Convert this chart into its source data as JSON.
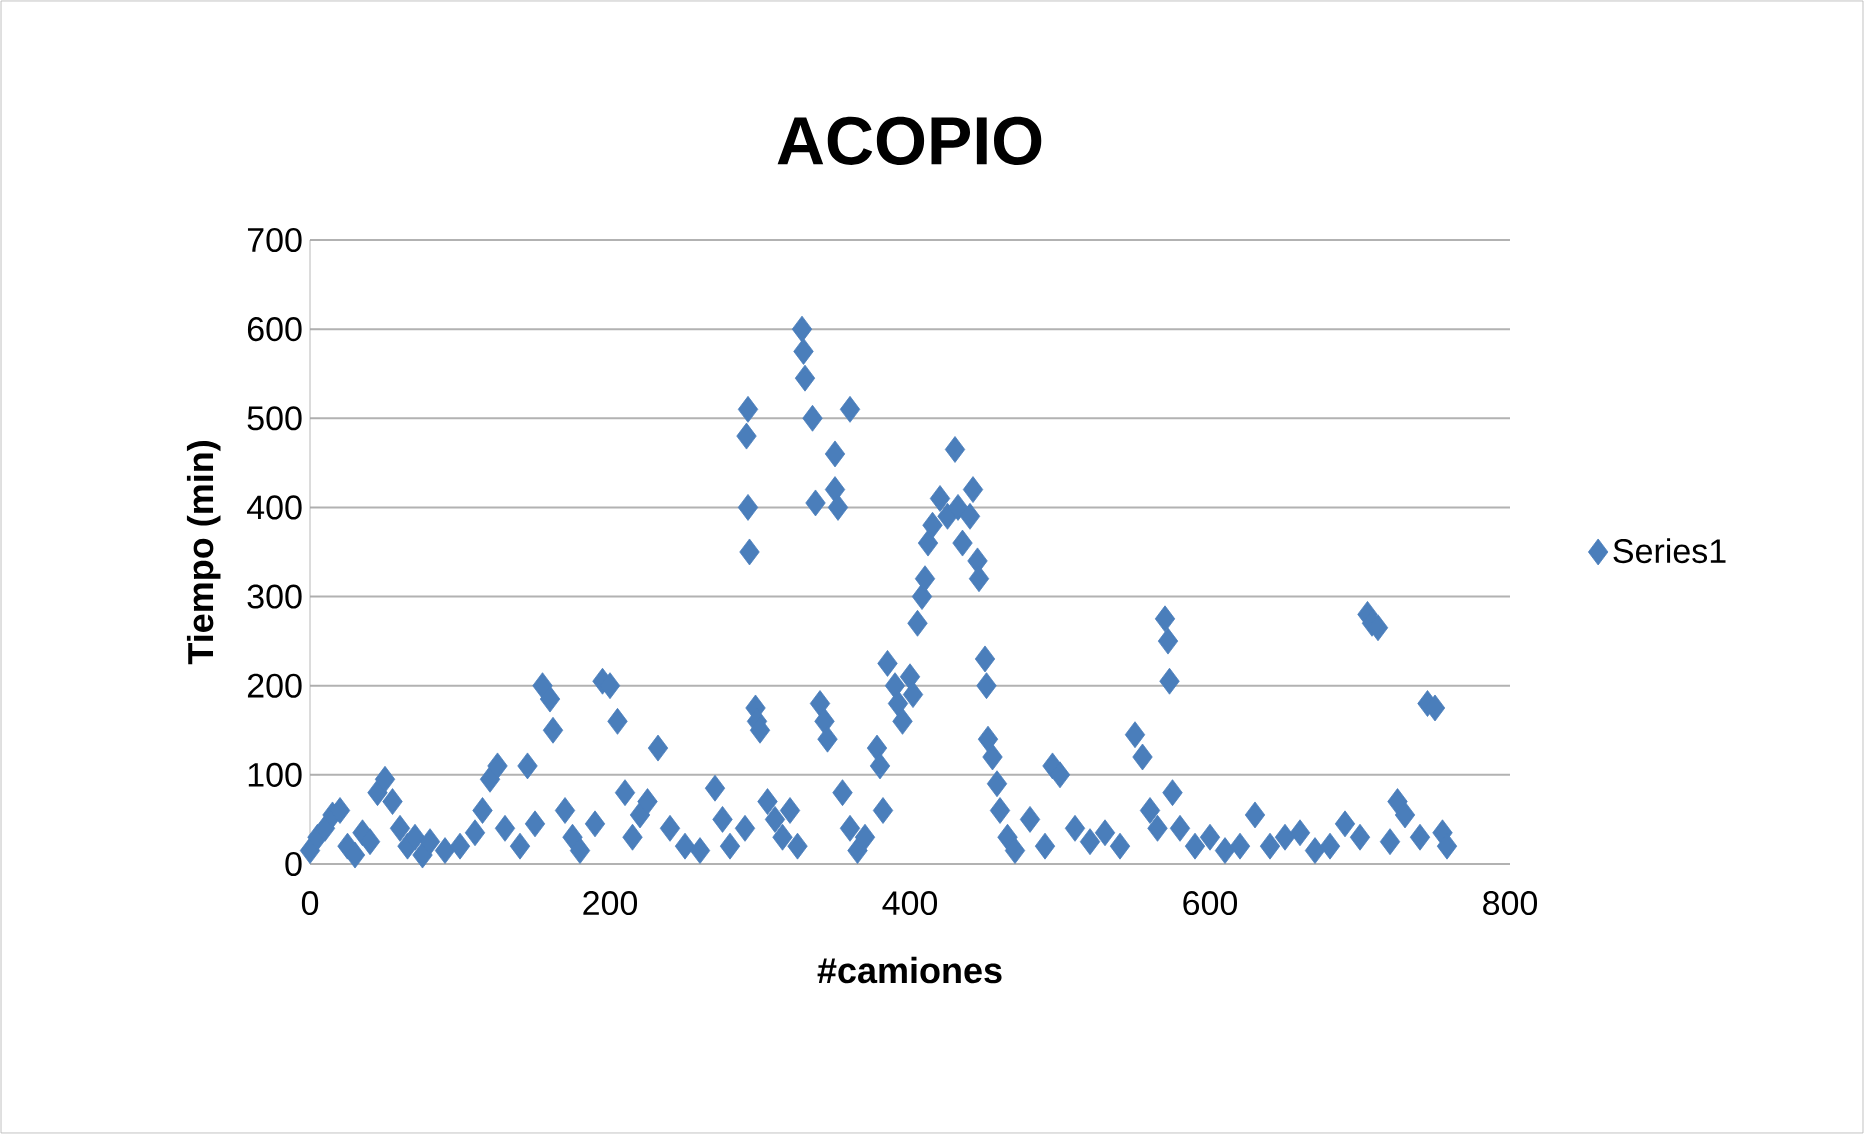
{
  "chart_data": {
    "type": "scatter",
    "title": "ACOPIO",
    "xlabel": "#camiones",
    "ylabel": "Tiempo (min)",
    "xlim": [
      0,
      800
    ],
    "xticks": [
      0,
      200,
      400,
      600,
      800
    ],
    "ylim": [
      0,
      700
    ],
    "yticks": [
      0,
      100,
      200,
      300,
      400,
      500,
      600,
      700
    ],
    "grid": "y",
    "legend": "right",
    "marker": "diamond",
    "series": [
      {
        "name": "Series1",
        "color": "#4a7ebb",
        "x": [
          0,
          5,
          10,
          15,
          20,
          25,
          30,
          35,
          40,
          45,
          50,
          55,
          60,
          65,
          70,
          75,
          80,
          90,
          100,
          110,
          115,
          120,
          125,
          130,
          140,
          145,
          150,
          155,
          160,
          162,
          170,
          175,
          180,
          190,
          195,
          200,
          205,
          210,
          215,
          220,
          225,
          232,
          240,
          250,
          260,
          270,
          275,
          280,
          290,
          292,
          291,
          292,
          293,
          297,
          298,
          300,
          305,
          310,
          315,
          320,
          325,
          328,
          329,
          330,
          335,
          337,
          340,
          343,
          345,
          350,
          350,
          352,
          355,
          360,
          360,
          365,
          370,
          378,
          380,
          382,
          385,
          390,
          392,
          395,
          400,
          402,
          405,
          408,
          410,
          412,
          415,
          420,
          425,
          430,
          432,
          435,
          440,
          442,
          445,
          446,
          450,
          451,
          452,
          455,
          458,
          460,
          465,
          470,
          480,
          490,
          495,
          500,
          510,
          520,
          530,
          540,
          550,
          555,
          560,
          565,
          570,
          572,
          573,
          575,
          580,
          590,
          600,
          610,
          620,
          630,
          640,
          650,
          660,
          670,
          680,
          690,
          700,
          705,
          708,
          712,
          720,
          725,
          730,
          740,
          745,
          750,
          755,
          758
        ],
        "values": [
          15,
          30,
          40,
          55,
          60,
          20,
          10,
          35,
          25,
          80,
          95,
          70,
          40,
          20,
          30,
          10,
          25,
          15,
          20,
          35,
          60,
          95,
          110,
          40,
          20,
          110,
          45,
          200,
          185,
          150,
          60,
          30,
          15,
          45,
          205,
          200,
          160,
          80,
          30,
          55,
          70,
          130,
          40,
          20,
          15,
          85,
          50,
          20,
          40,
          510,
          480,
          400,
          350,
          175,
          160,
          150,
          70,
          50,
          30,
          60,
          20,
          600,
          575,
          545,
          500,
          405,
          180,
          160,
          140,
          460,
          420,
          400,
          80,
          510,
          40,
          15,
          30,
          130,
          110,
          60,
          225,
          200,
          180,
          160,
          210,
          190,
          270,
          300,
          320,
          360,
          380,
          410,
          390,
          465,
          400,
          360,
          390,
          420,
          340,
          320,
          230,
          200,
          140,
          120,
          90,
          60,
          30,
          15,
          50,
          20,
          110,
          100,
          40,
          25,
          35,
          20,
          145,
          120,
          60,
          40,
          275,
          250,
          205,
          80,
          40,
          20,
          30,
          15,
          20,
          55,
          20,
          30,
          35,
          15,
          20,
          45,
          30,
          280,
          270,
          265,
          25,
          70,
          55,
          30,
          180,
          175,
          35,
          20
        ]
      }
    ]
  }
}
